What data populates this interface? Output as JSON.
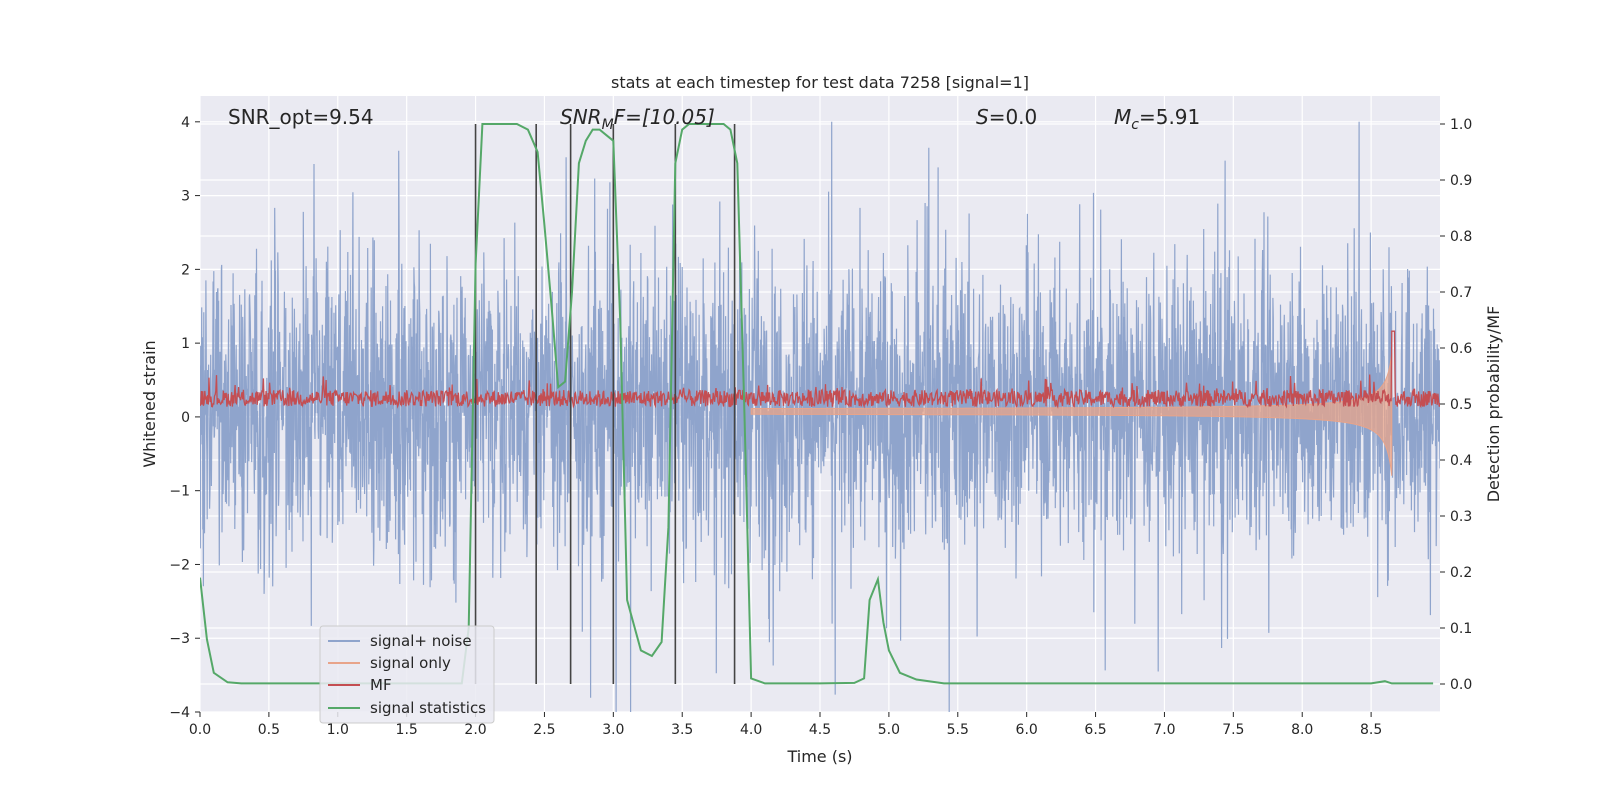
{
  "chart_data": {
    "type": "line",
    "title": "stats at each timestep for test data 7258 [signal=1]",
    "xlabel": "Time (s)",
    "ylabel_left": "Whitened strain",
    "ylabel_right": "Detection probability/MF",
    "xlim": [
      0,
      9
    ],
    "ylim_left": [
      -4,
      4.35
    ],
    "ylim_right": [
      -0.05,
      1.05
    ],
    "x_ticks": [
      0.0,
      0.5,
      1.0,
      1.5,
      2.0,
      2.5,
      3.0,
      3.5,
      4.0,
      4.5,
      5.0,
      5.5,
      6.0,
      6.5,
      7.0,
      7.5,
      8.0,
      8.5
    ],
    "x_tick_labels": [
      "0.0",
      "0.5",
      "1.0",
      "1.5",
      "2.0",
      "2.5",
      "3.0",
      "3.5",
      "4.0",
      "4.5",
      "5.0",
      "5.5",
      "6.0",
      "6.5",
      "7.0",
      "7.5",
      "8.0",
      "8.5"
    ],
    "y_left_ticks": [
      -4,
      -3,
      -2,
      -1,
      0,
      1,
      2,
      3,
      4
    ],
    "y_left_tick_labels": [
      "−4",
      "−3",
      "−2",
      "−1",
      "0",
      "1",
      "2",
      "3",
      "4"
    ],
    "y_right_ticks": [
      0.0,
      0.1,
      0.2,
      0.3,
      0.4,
      0.5,
      0.6,
      0.7,
      0.8,
      0.9,
      1.0
    ],
    "y_right_tick_labels": [
      "0.0",
      "0.1",
      "0.2",
      "0.3",
      "0.4",
      "0.5",
      "0.6",
      "0.7",
      "0.8",
      "0.9",
      "1.0"
    ],
    "grid": true,
    "legend_position": "lower-left",
    "annotations": {
      "snr_opt": "SNR_opt=9.54",
      "snr_mf_main": "SNR",
      "snr_mf_sub": "M",
      "snr_mf_rest": "F=[10.05]",
      "s_main": "S",
      "s_rest": "=0.0",
      "mc_main": "M",
      "mc_sub": "c",
      "mc_rest": "=5.91"
    },
    "colors": {
      "background": "#eaeaf2",
      "grid": "#ffffff",
      "signal_noise": "#8fa4cc",
      "signal_only": "#e8a48a",
      "mf": "#c44e52",
      "statistics": "#55a868",
      "vlines": "#444444"
    },
    "series": [
      {
        "name": "signal+ noise",
        "axis": "left",
        "kind": "noise",
        "envelope": [
          -4.0,
          4.0
        ],
        "typical_band": [
          -1.3,
          1.7
        ]
      },
      {
        "name": "signal only",
        "axis": "left",
        "kind": "chirp",
        "start": 4.0,
        "end": 8.65,
        "peak_amplitude": 1.2
      },
      {
        "name": "MF",
        "axis": "right",
        "kind": "noise",
        "baseline": 0.51,
        "range": [
          0.48,
          0.55
        ],
        "spike": {
          "x": 8.66,
          "y": 0.63
        }
      },
      {
        "name": "signal statistics",
        "axis": "right",
        "kind": "line",
        "points": [
          [
            0.0,
            0.19
          ],
          [
            0.05,
            0.08
          ],
          [
            0.1,
            0.02
          ],
          [
            0.2,
            0.003
          ],
          [
            0.3,
            0.001
          ],
          [
            0.5,
            0.001
          ],
          [
            1.0,
            0.001
          ],
          [
            1.5,
            0.001
          ],
          [
            1.9,
            0.001
          ],
          [
            1.95,
            0.1
          ],
          [
            2.0,
            0.75
          ],
          [
            2.05,
            1.0
          ],
          [
            2.3,
            1.0
          ],
          [
            2.38,
            0.99
          ],
          [
            2.45,
            0.95
          ],
          [
            2.5,
            0.82
          ],
          [
            2.55,
            0.68
          ],
          [
            2.6,
            0.53
          ],
          [
            2.65,
            0.54
          ],
          [
            2.7,
            0.7
          ],
          [
            2.75,
            0.93
          ],
          [
            2.8,
            0.97
          ],
          [
            2.85,
            0.99
          ],
          [
            2.9,
            0.99
          ],
          [
            2.95,
            0.98
          ],
          [
            3.0,
            0.97
          ],
          [
            3.05,
            0.65
          ],
          [
            3.1,
            0.15
          ],
          [
            3.2,
            0.06
          ],
          [
            3.28,
            0.05
          ],
          [
            3.35,
            0.075
          ],
          [
            3.4,
            0.28
          ],
          [
            3.45,
            0.93
          ],
          [
            3.5,
            0.99
          ],
          [
            3.55,
            1.0
          ],
          [
            3.8,
            1.0
          ],
          [
            3.85,
            0.99
          ],
          [
            3.9,
            0.93
          ],
          [
            3.95,
            0.5
          ],
          [
            4.0,
            0.01
          ],
          [
            4.1,
            0.001
          ],
          [
            4.5,
            0.001
          ],
          [
            4.75,
            0.002
          ],
          [
            4.82,
            0.01
          ],
          [
            4.86,
            0.15
          ],
          [
            4.92,
            0.187
          ],
          [
            4.96,
            0.11
          ],
          [
            5.0,
            0.06
          ],
          [
            5.08,
            0.02
          ],
          [
            5.2,
            0.008
          ],
          [
            5.4,
            0.001
          ],
          [
            6.0,
            0.001
          ],
          [
            7.0,
            0.001
          ],
          [
            8.0,
            0.001
          ],
          [
            8.5,
            0.001
          ],
          [
            8.6,
            0.005
          ],
          [
            8.65,
            0.001
          ],
          [
            8.95,
            0.001
          ]
        ]
      }
    ],
    "vertical_lines": {
      "x": [
        2.0,
        2.44,
        2.69,
        3.0,
        3.45,
        3.88
      ],
      "y_range_right": [
        0.0,
        1.0
      ]
    }
  }
}
